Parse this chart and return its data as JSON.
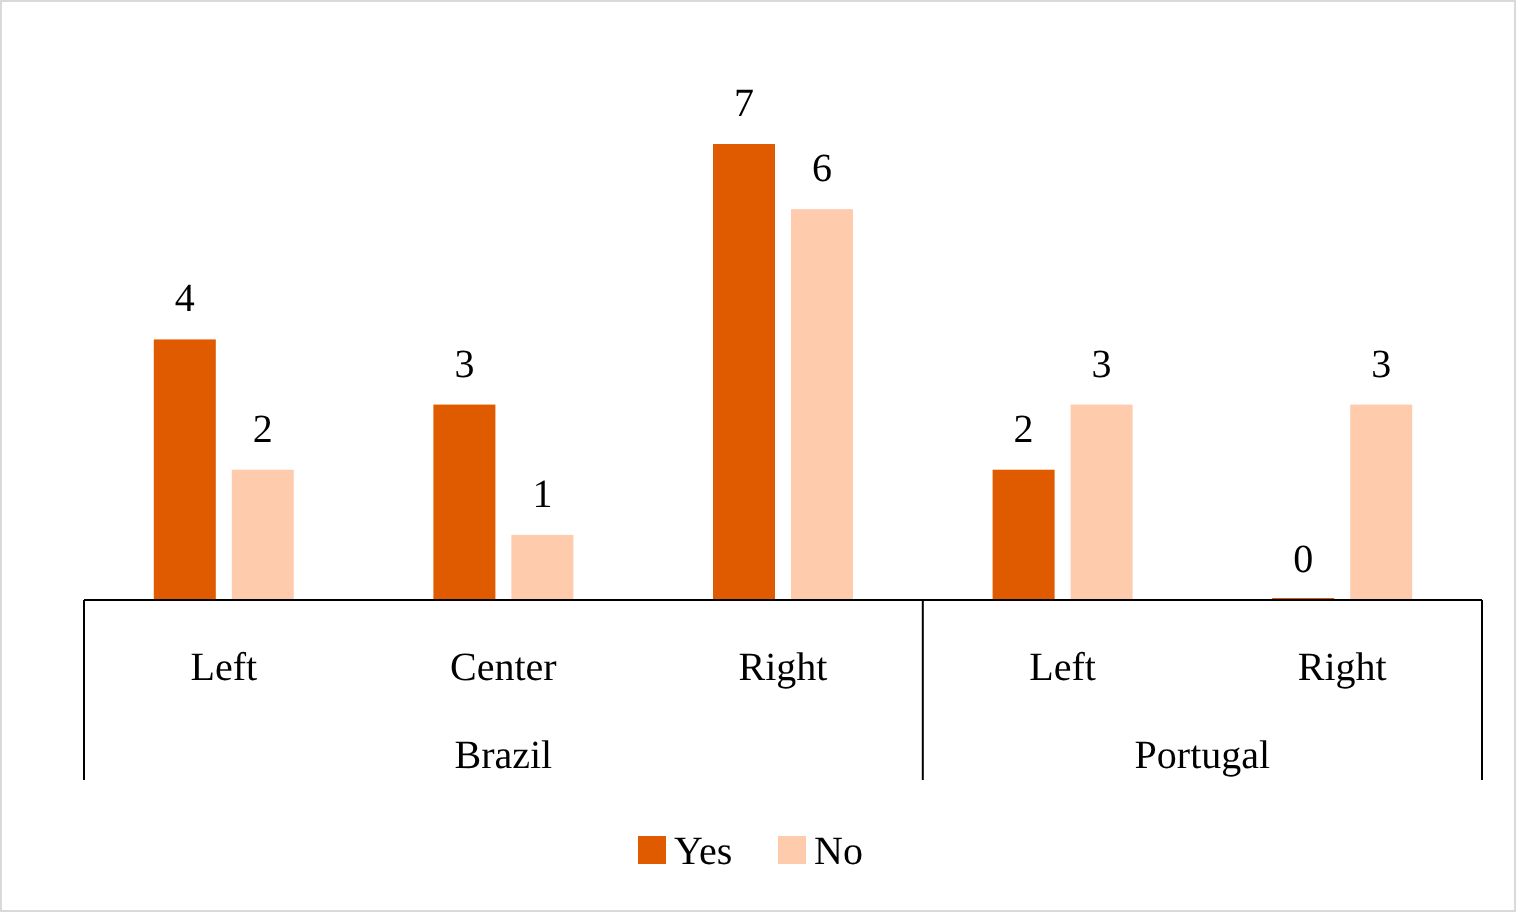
{
  "chart_data": {
    "type": "bar",
    "categories": [
      "Left",
      "Center",
      "Right",
      "Left",
      "Right"
    ],
    "series": [
      {
        "name": "Yes",
        "color": "#e05a00",
        "values": [
          4,
          3,
          7,
          2,
          0
        ]
      },
      {
        "name": "No",
        "color": "#fecbad",
        "values": [
          2,
          1,
          6,
          3,
          3
        ]
      }
    ],
    "data_labels": true,
    "legend": "bottom",
    "annotations": [
      "Brazil",
      "Portugal"
    ]
  }
}
